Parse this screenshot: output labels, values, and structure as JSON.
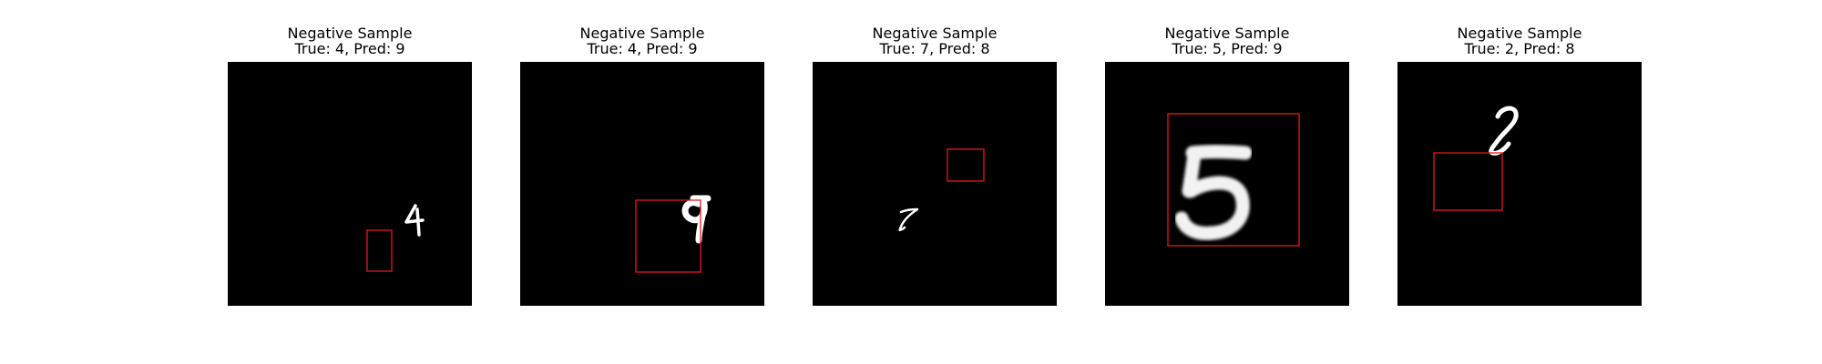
{
  "figure": {
    "background_color": "#ffffff",
    "image_background_color": "#000000",
    "box_color": "#e31a1c",
    "digit_color": "#ffffff"
  },
  "panels": [
    {
      "title_line1": "Negative Sample",
      "title_line2": "True: 4, Pred: 9"
    },
    {
      "title_line1": "Negative Sample",
      "title_line2": "True: 4, Pred: 9"
    },
    {
      "title_line1": "Negative Sample",
      "title_line2": "True: 7, Pred: 8"
    },
    {
      "title_line1": "Negative Sample",
      "title_line2": "True: 5, Pred: 9"
    },
    {
      "title_line1": "Negative Sample",
      "title_line2": "True: 2, Pred: 8"
    }
  ]
}
